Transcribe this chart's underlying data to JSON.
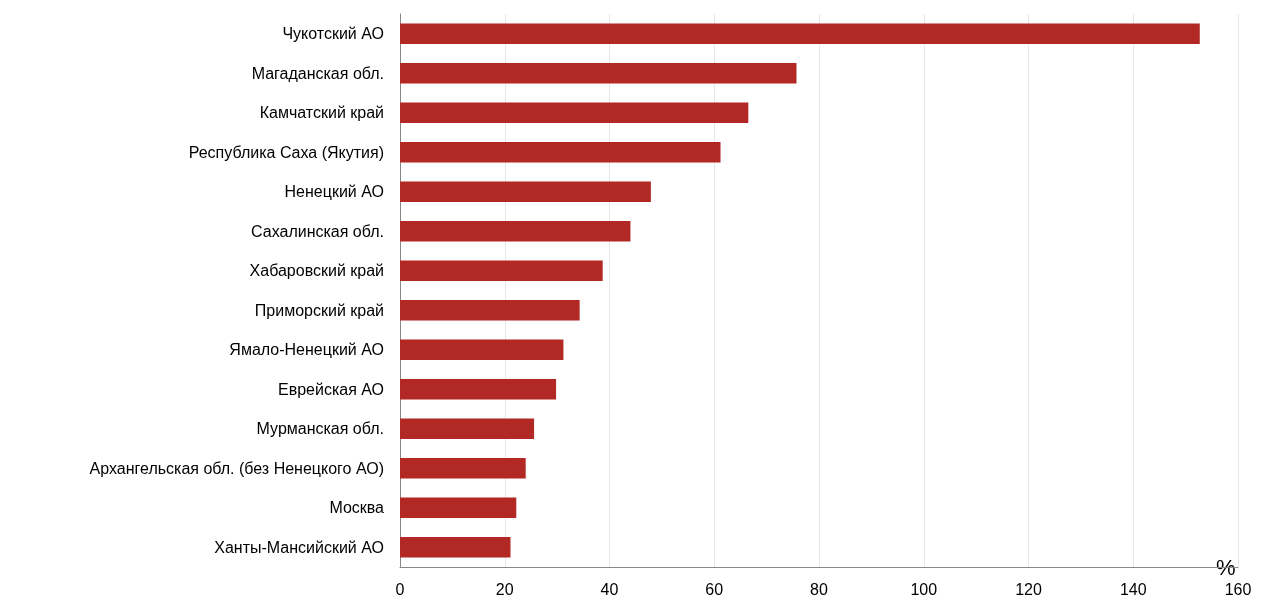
{
  "chart_data": {
    "type": "bar",
    "orientation": "horizontal",
    "xlabel": "%",
    "categories": [
      "Чукотский АО",
      "Магаданская обл.",
      "Камчатский край",
      "Республика Саха (Якутия)",
      "Ненецкий АО",
      "Сахалинская обл.",
      "Хабаровский край",
      "Приморский край",
      "Ямало-Ненецкий АО",
      "Еврейская АО",
      "Мурманская обл.",
      "Архангельская обл. (без Ненецкого АО)",
      "Москва",
      "Ханты-Мансийский АО"
    ],
    "values": [
      152.7,
      75.7,
      66.5,
      61.2,
      47.9,
      44.0,
      38.7,
      34.3,
      31.2,
      29.8,
      25.6,
      24.0,
      22.2,
      21.1
    ],
    "color": "#b22825",
    "xlim": [
      0,
      160
    ],
    "xticks": [
      0,
      20,
      40,
      60,
      80,
      100,
      120,
      140,
      160
    ],
    "grid": "x"
  }
}
